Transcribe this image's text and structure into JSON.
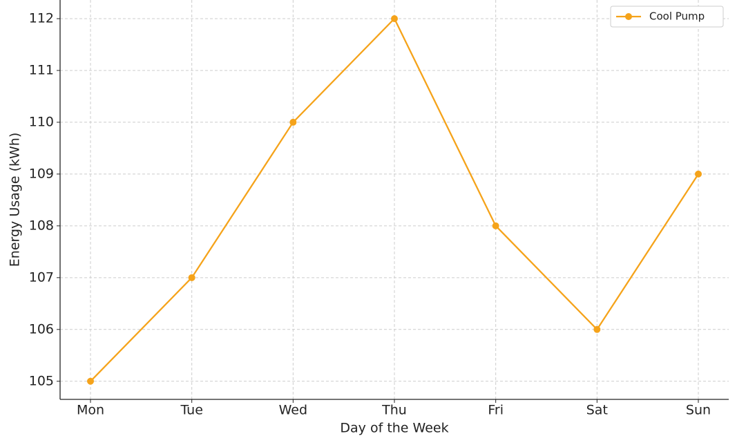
{
  "chart_data": {
    "type": "line",
    "x_label": "Day of the Week",
    "y_label": "Energy Usage (kWh)",
    "categories": [
      "Mon",
      "Tue",
      "Wed",
      "Thu",
      "Fri",
      "Sat",
      "Sun"
    ],
    "series": [
      {
        "name": "Cool Pump",
        "color": "#f5a31a",
        "values": [
          105,
          107,
          110,
          112,
          108,
          106,
          109
        ]
      }
    ],
    "ylim": [
      104.65,
      112.36
    ],
    "yticks": [
      105,
      106,
      107,
      108,
      109,
      110,
      111,
      112
    ],
    "grid": true,
    "legend": "upper-right"
  }
}
